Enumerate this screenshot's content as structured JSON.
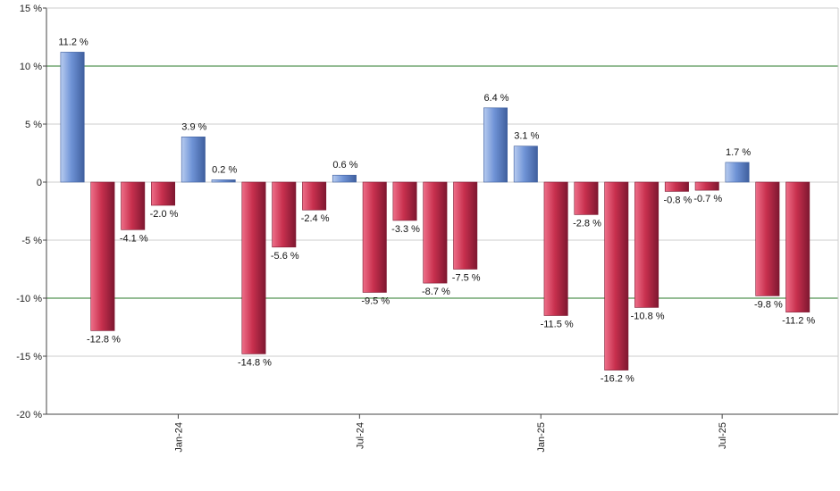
{
  "chart_data": {
    "type": "bar",
    "title": "",
    "xlabel": "",
    "ylabel": "",
    "ylim": [
      -20,
      15
    ],
    "y_ticks": [
      15,
      10,
      5,
      0,
      -5,
      -10,
      -15,
      -20
    ],
    "y_tick_labels": [
      "15 %",
      "10 %",
      "5 %",
      "0",
      "-5 %",
      "-10 %",
      "-15 %",
      "-20 %"
    ],
    "reference_lines": [
      10,
      -10
    ],
    "grid": true,
    "x_tick_labels": [
      {
        "label": "Jan-24",
        "after_bar": 4
      },
      {
        "label": "Jul-24",
        "after_bar": 10
      },
      {
        "label": "Jan-25",
        "after_bar": 16
      },
      {
        "label": "Jul-25",
        "after_bar": 22
      }
    ],
    "values": [
      11.2,
      -12.8,
      -4.1,
      -2.0,
      3.9,
      0.2,
      -14.8,
      -5.6,
      -2.4,
      0.6,
      -9.5,
      -3.3,
      -8.7,
      -7.5,
      6.4,
      3.1,
      -11.5,
      -2.8,
      -16.2,
      -10.8,
      -0.8,
      -0.7,
      1.7,
      -9.8,
      -11.2
    ],
    "value_labels": [
      "11.2 %",
      "-12.8 %",
      "-4.1 %",
      "-2.0 %",
      "3.9 %",
      "0.2 %",
      "-14.8 %",
      "-5.6 %",
      "-2.4 %",
      "0.6 %",
      "-9.5 %",
      "-3.3 %",
      "-8.7 %",
      "-7.5 %",
      "6.4 %",
      "3.1 %",
      "-11.5 %",
      "-2.8 %",
      "-16.2 %",
      "-10.8 %",
      "-0.8 %",
      "-0.7 %",
      "1.7 %",
      "-9.8 %",
      "-11.2 %"
    ],
    "colors": {
      "positive": "#6f93d6",
      "positive_light": "#b8ccf0",
      "positive_dark": "#3f5f9e",
      "negative": "#c8304e",
      "negative_light": "#ee6f89",
      "negative_dark": "#7e1730",
      "reference_line": "#2a7a2a",
      "grid": "#cccccc",
      "axis": "#444444"
    }
  }
}
